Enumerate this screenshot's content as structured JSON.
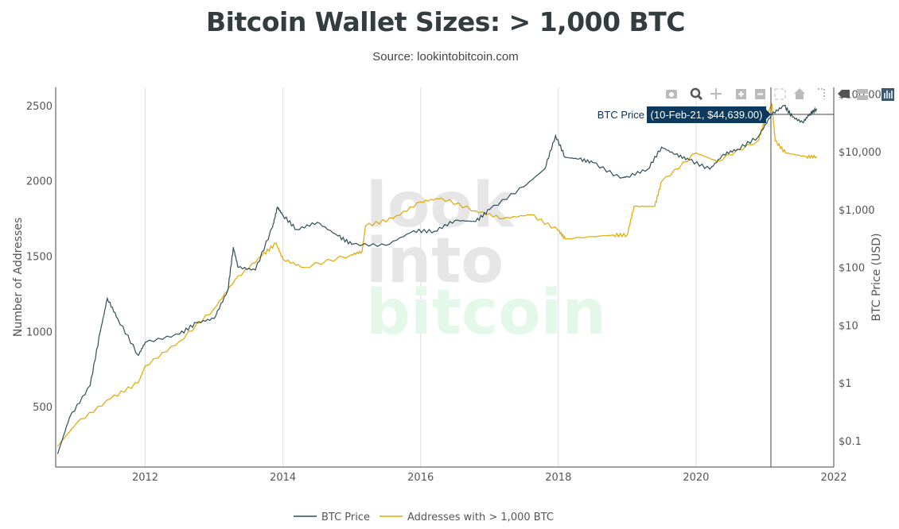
{
  "title": "Bitcoin Wallet Sizes: > 1,000 BTC",
  "subtitle": "Source: lookintobitcoin.com",
  "watermark": [
    "look",
    "into",
    "bitcoin"
  ],
  "tooltip": {
    "series": "BTC Price",
    "text": "(10-Feb-21, $44,639.00)"
  },
  "modebar": [
    "camera-icon",
    "zoom-icon",
    "pan-icon",
    "zoom-in-icon",
    "zoom-out-icon",
    "autoscale-icon",
    "home-icon",
    "spike-lines-icon",
    "hover-closest-icon",
    "hover-compare-icon",
    "plotly-logo-icon"
  ],
  "chart_data": {
    "type": "line",
    "title": "Bitcoin Wallet Sizes: > 1,000 BTC",
    "xlabel": "",
    "ylabel": "Number of Addresses",
    "y2label": "BTC Price (USD)",
    "xlim": [
      2010.7,
      2022.0
    ],
    "ylim": [
      100,
      2620
    ],
    "y2lim_log": [
      0.035,
      130000
    ],
    "y2scale": "log",
    "x_ticks": [
      "2012",
      "2014",
      "2016",
      "2018",
      "2020",
      "2022"
    ],
    "y_ticks": [
      "500",
      "1000",
      "1500",
      "2000",
      "2500"
    ],
    "y2_ticks": [
      "$0.1",
      "$1",
      "$10",
      "$100",
      "$1,000",
      "$10,000",
      "$100,000"
    ],
    "grid": "vertical",
    "legend_position": "bottom",
    "colors": {
      "price": "#2f4f57",
      "addresses": "#e0a800"
    },
    "series": [
      {
        "name": "BTC Price",
        "axis": "right",
        "x": [
          2010.73,
          2010.9,
          2011.2,
          2011.35,
          2011.45,
          2011.6,
          2011.9,
          2012.0,
          2012.5,
          2012.75,
          2013.0,
          2013.2,
          2013.28,
          2013.35,
          2013.6,
          2013.85,
          2013.92,
          2014.0,
          2014.2,
          2014.5,
          2014.8,
          2015.0,
          2015.5,
          2015.9,
          2016.2,
          2016.5,
          2016.8,
          2017.0,
          2017.5,
          2017.8,
          2017.96,
          2018.1,
          2018.3,
          2018.5,
          2018.9,
          2019.0,
          2019.3,
          2019.5,
          2019.7,
          2019.9,
          2020.2,
          2020.4,
          2020.6,
          2020.9,
          2021.1,
          2021.28,
          2021.4,
          2021.55,
          2021.65,
          2021.75
        ],
        "values": [
          0.06,
          0.25,
          0.9,
          8,
          29,
          13,
          3,
          5,
          7,
          11,
          13,
          40,
          220,
          100,
          90,
          500,
          1100,
          800,
          450,
          600,
          350,
          250,
          240,
          430,
          420,
          650,
          620,
          1000,
          2500,
          5000,
          19000,
          8000,
          7500,
          6500,
          3500,
          3700,
          5000,
          12000,
          9000,
          7200,
          5000,
          9000,
          11000,
          18000,
          44639,
          63000,
          40000,
          32000,
          45000,
          55000
        ]
      },
      {
        "name": "Addresses with > 1,000 BTC",
        "axis": "left",
        "x": [
          2010.73,
          2011.0,
          2011.5,
          2011.9,
          2012.0,
          2012.5,
          2013.0,
          2013.3,
          2013.7,
          2013.9,
          2014.0,
          2014.3,
          2015.0,
          2015.15,
          2015.2,
          2015.6,
          2016.0,
          2016.3,
          2016.8,
          2017.2,
          2017.6,
          2018.0,
          2018.1,
          2018.8,
          2019.0,
          2019.1,
          2019.4,
          2019.5,
          2020.0,
          2020.3,
          2020.9,
          2021.0,
          2021.1,
          2021.15,
          2021.3,
          2021.6,
          2021.75
        ],
        "values": [
          240,
          390,
          555,
          660,
          770,
          935,
          1150,
          1340,
          1505,
          1585,
          1480,
          1425,
          1510,
          1530,
          1700,
          1750,
          1860,
          1885,
          1800,
          1750,
          1775,
          1670,
          1615,
          1640,
          1640,
          1830,
          1830,
          1995,
          2185,
          2130,
          2265,
          2400,
          2510,
          2265,
          2185,
          2160,
          2160
        ]
      }
    ]
  }
}
